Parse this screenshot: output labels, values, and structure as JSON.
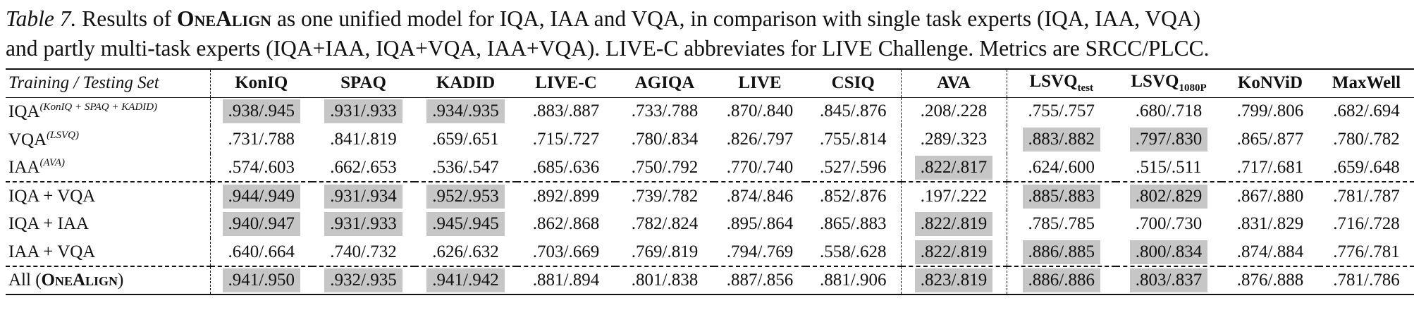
{
  "caption": {
    "label": "Table 7.",
    "text_1a": " Results of ",
    "model": "OneAlign",
    "text_1b": " as one unified model for IQA, IAA and VQA, in comparison with single task experts (IQA, IAA, VQA)",
    "text_2": "and partly multi-task experts (IQA+IAA, IQA+VQA, IAA+VQA). LIVE-C abbreviates for LIVE Challenge. Metrics are SRCC/PLCC."
  },
  "table": {
    "corner_label": "Training / Testing Set",
    "columns": [
      {
        "name": "KonIQ",
        "sub": ""
      },
      {
        "name": "SPAQ",
        "sub": ""
      },
      {
        "name": "KADID",
        "sub": ""
      },
      {
        "name": "LIVE-C",
        "sub": ""
      },
      {
        "name": "AGIQA",
        "sub": ""
      },
      {
        "name": "LIVE",
        "sub": ""
      },
      {
        "name": "CSIQ",
        "sub": ""
      },
      {
        "name": "AVA",
        "sub": ""
      },
      {
        "name": "LSVQ",
        "sub": "test"
      },
      {
        "name": "LSVQ",
        "sub": "1080P"
      },
      {
        "name": "KoNViD",
        "sub": ""
      },
      {
        "name": "MaxWell",
        "sub": ""
      }
    ],
    "rows": [
      {
        "label": "IQA",
        "sup": "(KonIQ + SPAQ + KADID)",
        "values": [
          ".938/.945",
          ".931/.933",
          ".934/.935",
          ".883/.887",
          ".733/.788",
          ".870/.840",
          ".845/.876",
          ".208/.228",
          ".755/.757",
          ".680/.718",
          ".799/.806",
          ".682/.694"
        ],
        "highlight": [
          true,
          true,
          true,
          false,
          false,
          false,
          false,
          false,
          false,
          false,
          false,
          false
        ]
      },
      {
        "label": "VQA",
        "sup": "(LSVQ)",
        "values": [
          ".731/.788",
          ".841/.819",
          ".659/.651",
          ".715/.727",
          ".780/.834",
          ".826/.797",
          ".755/.814",
          ".289/.323",
          ".883/.882",
          ".797/.830",
          ".865/.877",
          ".780/.782"
        ],
        "highlight": [
          false,
          false,
          false,
          false,
          false,
          false,
          false,
          false,
          true,
          true,
          false,
          false
        ]
      },
      {
        "label": "IAA",
        "sup": "(AVA)",
        "values": [
          ".574/.603",
          ".662/.653",
          ".536/.547",
          ".685/.636",
          ".750/.792",
          ".770/.740",
          ".527/.596",
          ".822/.817",
          ".624/.600",
          ".515/.511",
          ".717/.681",
          ".659/.648"
        ],
        "highlight": [
          false,
          false,
          false,
          false,
          false,
          false,
          false,
          true,
          false,
          false,
          false,
          false
        ]
      },
      {
        "label": "IQA + VQA",
        "sup": "",
        "values": [
          ".944/.949",
          ".931/.934",
          ".952/.953",
          ".892/.899",
          ".739/.782",
          ".874/.846",
          ".852/.876",
          ".197/.222",
          ".885/.883",
          ".802/.829",
          ".867/.880",
          ".781/.787"
        ],
        "highlight": [
          true,
          true,
          true,
          false,
          false,
          false,
          false,
          false,
          true,
          true,
          false,
          false
        ]
      },
      {
        "label": "IQA + IAA",
        "sup": "",
        "values": [
          ".940/.947",
          ".931/.933",
          ".945/.945",
          ".862/.868",
          ".782/.824",
          ".895/.864",
          ".865/.883",
          ".822/.819",
          ".785/.785",
          ".700/.730",
          ".831/.829",
          ".716/.728"
        ],
        "highlight": [
          true,
          true,
          true,
          false,
          false,
          false,
          false,
          true,
          false,
          false,
          false,
          false
        ]
      },
      {
        "label": "IAA + VQA",
        "sup": "",
        "values": [
          ".640/.664",
          ".740/.732",
          ".626/.632",
          ".703/.669",
          ".769/.819",
          ".794/.769",
          ".558/.628",
          ".822/.819",
          ".886/.885",
          ".800/.834",
          ".874/.884",
          ".776/.781"
        ],
        "highlight": [
          false,
          false,
          false,
          false,
          false,
          false,
          false,
          true,
          true,
          true,
          false,
          false
        ]
      },
      {
        "label": "All (",
        "label_sc": "OneAlign",
        "label_end": ")",
        "sup": "",
        "values": [
          ".941/.950",
          ".932/.935",
          ".941/.942",
          ".881/.894",
          ".801/.838",
          ".887/.856",
          ".881/.906",
          ".823/.819",
          ".886/.886",
          ".803/.837",
          ".876/.888",
          ".781/.786"
        ],
        "highlight": [
          true,
          true,
          true,
          false,
          false,
          false,
          false,
          true,
          true,
          true,
          false,
          false
        ]
      }
    ]
  }
}
